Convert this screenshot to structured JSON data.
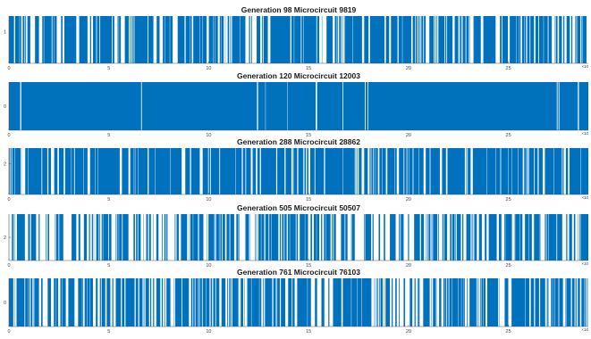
{
  "colors": {
    "bar": "#0072BD",
    "axis": "#555555",
    "background": "#ffffff"
  },
  "chart_data": [
    {
      "type": "bar",
      "title": "Generation 98 Microcircuit 9819",
      "xlim": [
        0,
        29
      ],
      "ylim": [
        0,
        1.5
      ],
      "xticks": [
        "0",
        "5",
        "10",
        "15",
        "20",
        "25"
      ],
      "xtick_values": [
        0,
        5,
        10,
        15,
        20,
        25
      ],
      "yticks": [
        "1"
      ],
      "ytick_values": [
        1
      ],
      "x_multiplier": "×10",
      "density": 0.7,
      "seed": 9819,
      "grid": false
    },
    {
      "type": "bar",
      "title": "Generation 120 Microcircuit 12003",
      "xlim": [
        0,
        29
      ],
      "ylim": [
        0,
        1
      ],
      "xticks": [
        "0",
        "5",
        "10",
        "15",
        "20",
        "25"
      ],
      "xtick_values": [
        0,
        5,
        10,
        15,
        20,
        25
      ],
      "yticks": [
        "0"
      ],
      "ytick_values": [
        0.5
      ],
      "x_multiplier": "×10",
      "density": 0.97,
      "seed": 12003,
      "grid": false
    },
    {
      "type": "bar",
      "title": "Generation 288 Microcircuit 28862",
      "xlim": [
        0,
        29
      ],
      "ylim": [
        0,
        3
      ],
      "xticks": [
        "0",
        "5",
        "10",
        "15",
        "20",
        "25"
      ],
      "xtick_values": [
        0,
        5,
        10,
        15,
        20,
        25
      ],
      "yticks": [
        "2"
      ],
      "ytick_values": [
        2
      ],
      "x_multiplier": "×10",
      "density": 0.78,
      "seed": 28862,
      "grid": false
    },
    {
      "type": "bar",
      "title": "Generation 505 Microcircuit 50507",
      "xlim": [
        0,
        29
      ],
      "ylim": [
        0,
        4
      ],
      "xticks": [
        "0",
        "5",
        "10",
        "15",
        "20",
        "25"
      ],
      "xtick_values": [
        0,
        5,
        10,
        15,
        20,
        25
      ],
      "yticks": [
        "2"
      ],
      "ytick_values": [
        2
      ],
      "x_multiplier": "×10",
      "density": 0.55,
      "seed": 50507,
      "grid": false
    },
    {
      "type": "bar",
      "title": "Generation 761 Microcircuit 76103",
      "xlim": [
        0,
        29
      ],
      "ylim": [
        0,
        1
      ],
      "xticks": [
        "0",
        "5",
        "10",
        "15",
        "20",
        "25"
      ],
      "xtick_values": [
        0,
        5,
        10,
        15,
        20,
        25
      ],
      "yticks": [
        "0"
      ],
      "ytick_values": [
        0.5
      ],
      "x_multiplier": "×10",
      "density": 0.62,
      "seed": 76103,
      "grid": false
    }
  ]
}
